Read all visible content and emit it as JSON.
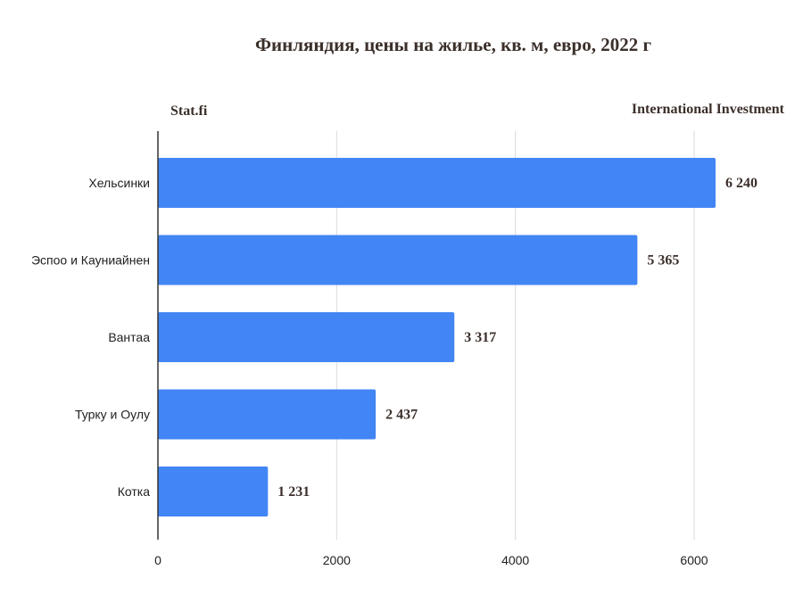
{
  "header": {
    "title": "Финляндия, цены на жилье, кв. м, евро, 2022 г",
    "source_left": "Stat.fi",
    "source_right": "International Investment"
  },
  "colors": {
    "bar": "#4285f4",
    "grid": "#d9d9d9",
    "axis": "#333333",
    "label_text": "#222222",
    "value_text": "#3b2f2a"
  },
  "chart_data": {
    "type": "bar",
    "orientation": "horizontal",
    "title": "Финляндия, цены на жилье, кв. м, евро, 2022 г",
    "categories": [
      "Хельсинки",
      "Эспоо и Кауниайнен",
      "Вантаа",
      "Турку и Оулу",
      "Котка"
    ],
    "values": [
      6240,
      5365,
      3317,
      2437,
      1231
    ],
    "value_labels": [
      "6 240",
      "5 365",
      "3 317",
      "2 437",
      "1 231"
    ],
    "xlim": [
      0,
      6500
    ],
    "xticks": [
      0,
      2000,
      4000,
      6000
    ],
    "xtick_labels": [
      "0",
      "2000",
      "4000",
      "6000"
    ],
    "grid": true,
    "legend": "none"
  }
}
